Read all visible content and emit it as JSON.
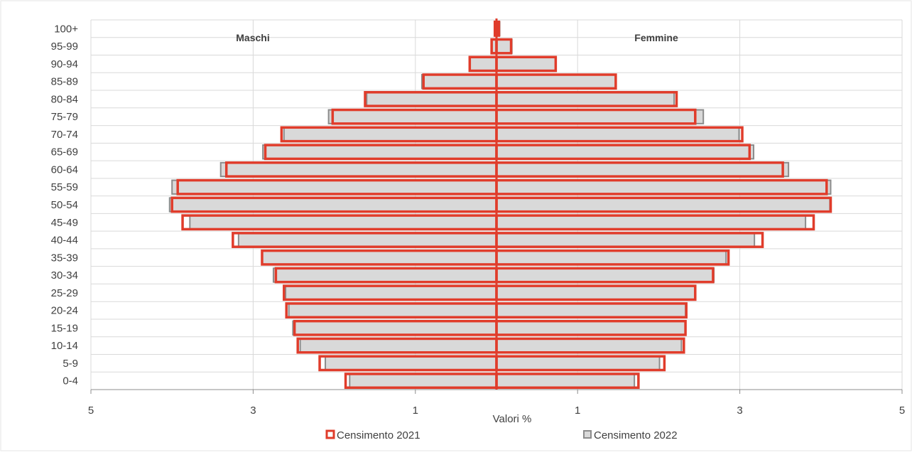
{
  "chart_data": {
    "type": "bar",
    "orientation": "horizontal",
    "layout": "population-pyramid",
    "categories": [
      "100+",
      "95-99",
      "90-94",
      "85-89",
      "80-84",
      "75-79",
      "70-74",
      "65-69",
      "60-64",
      "55-59",
      "50-54",
      "45-49",
      "40-44",
      "35-39",
      "30-34",
      "25-29",
      "20-24",
      "15-19",
      "10-14",
      "5-9",
      "0-4"
    ],
    "left_title": "Maschi",
    "right_title": "Femmine",
    "xlabel": "Valori %",
    "xlim": [
      -5,
      5
    ],
    "xtick_labels": [
      "5",
      "3",
      "1",
      "1",
      "3",
      "5"
    ],
    "grid": true,
    "legend_position": "bottom",
    "series": [
      {
        "name": "Censimento 2022",
        "style": "gray-filled",
        "color": "#8c8c8c",
        "fill": "#d9d9d9",
        "maschi": [
          0.02,
          0.06,
          0.33,
          0.92,
          1.6,
          2.07,
          2.62,
          2.88,
          3.4,
          4.0,
          4.03,
          3.78,
          3.18,
          2.89,
          2.75,
          2.6,
          2.56,
          2.51,
          2.42,
          2.11,
          1.81
        ],
        "femmine": [
          0.04,
          0.19,
          0.73,
          1.47,
          2.19,
          2.55,
          2.99,
          3.17,
          3.6,
          4.12,
          4.11,
          3.81,
          3.18,
          2.83,
          2.68,
          2.45,
          2.33,
          2.33,
          2.28,
          2.01,
          1.7
        ]
      },
      {
        "name": "Censimento 2021",
        "style": "red-outline",
        "color": "#e03c2b",
        "maschi": [
          0.02,
          0.06,
          0.33,
          0.9,
          1.62,
          2.02,
          2.65,
          2.85,
          3.33,
          3.93,
          4.0,
          3.87,
          3.25,
          2.89,
          2.72,
          2.62,
          2.59,
          2.49,
          2.45,
          2.18,
          1.86
        ],
        "femmine": [
          0.03,
          0.18,
          0.73,
          1.47,
          2.22,
          2.45,
          3.03,
          3.12,
          3.53,
          4.07,
          4.12,
          3.91,
          3.28,
          2.86,
          2.67,
          2.45,
          2.34,
          2.33,
          2.31,
          2.07,
          1.75
        ]
      }
    ]
  }
}
